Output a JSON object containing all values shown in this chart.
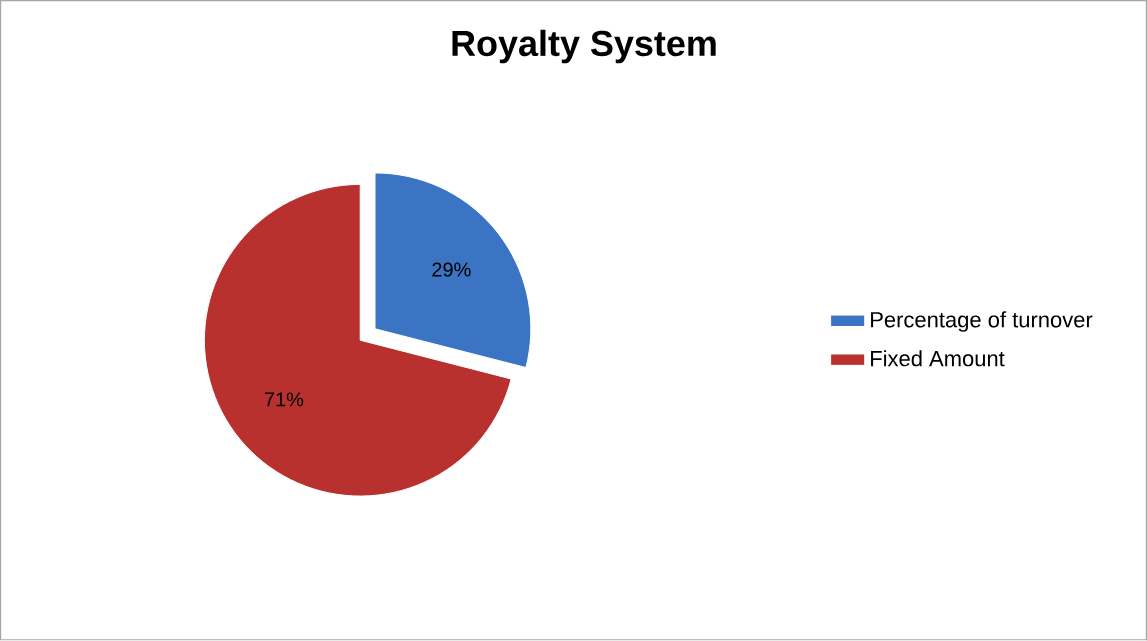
{
  "chart_data": {
    "type": "pie",
    "title": "Royalty System",
    "categories": [
      "Percentage of turnover",
      "Fixed Amount"
    ],
    "values": [
      29,
      71
    ],
    "colors": [
      "#3b74c2",
      "#b8312f"
    ],
    "value_labels": [
      "29%",
      "71%"
    ],
    "legend": "right"
  }
}
